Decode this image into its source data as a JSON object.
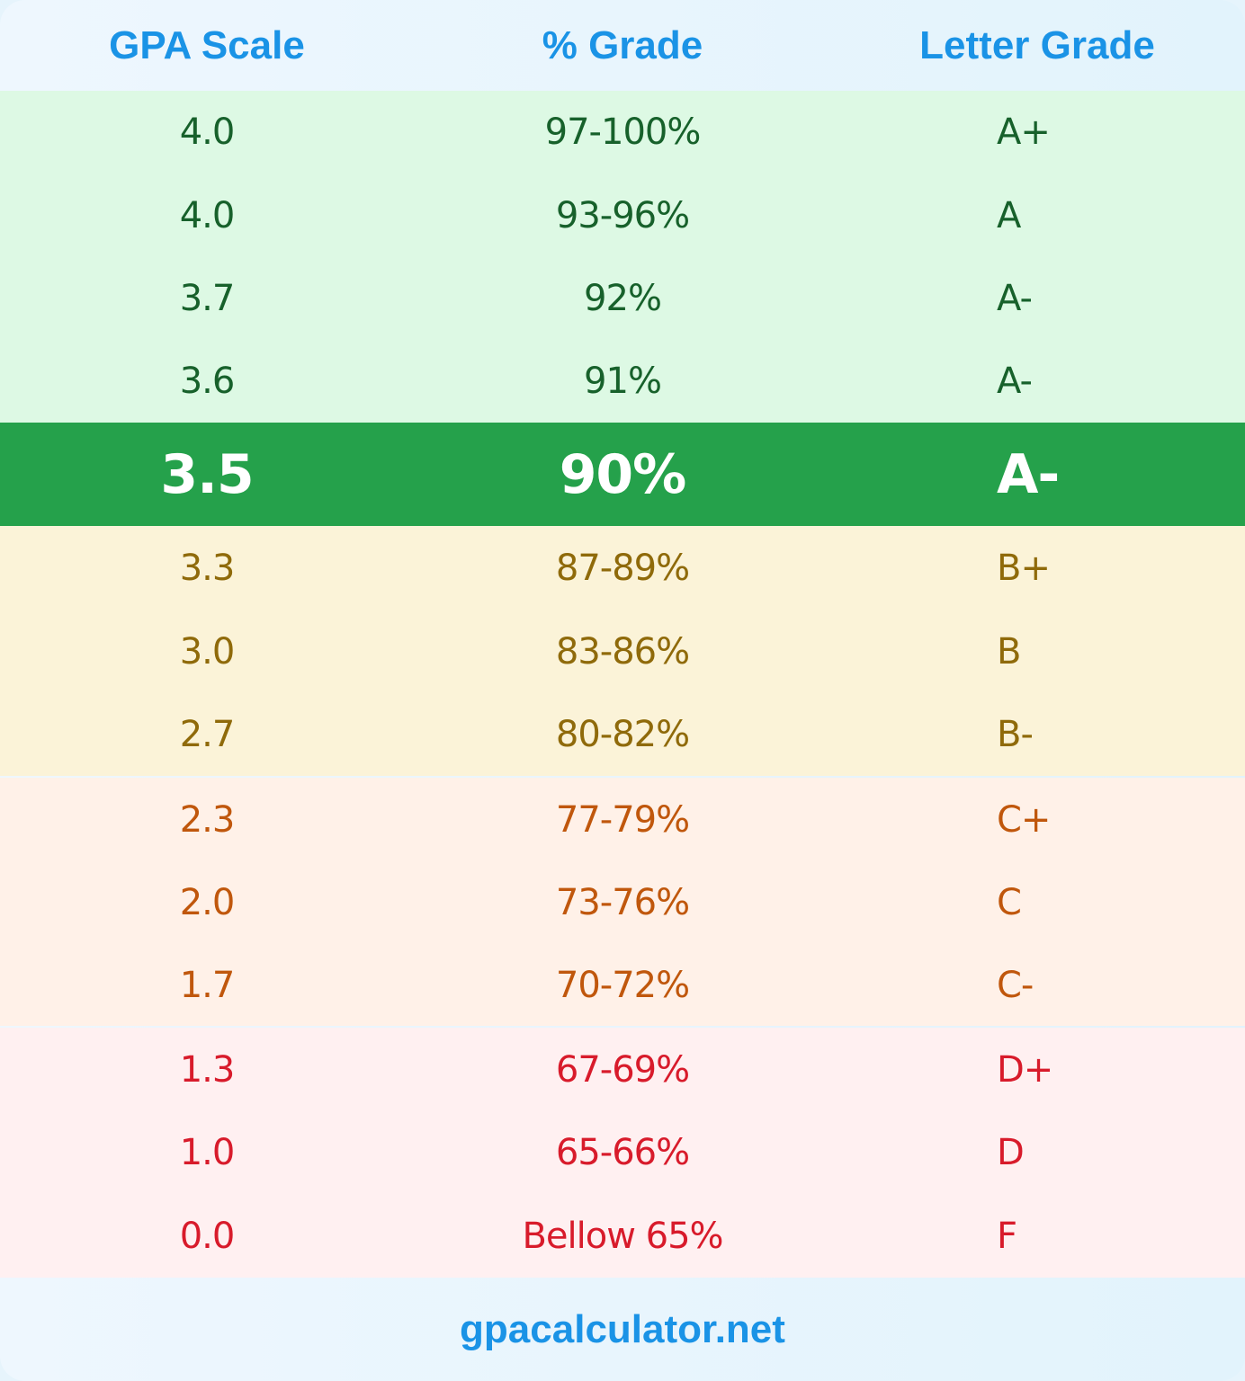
{
  "header": {
    "gpa": "GPA Scale",
    "percent": "% Grade",
    "letter": "Letter Grade"
  },
  "colors": {
    "accent": "#1a93e6",
    "green_bg": "#ddf9e4",
    "green_text": "#17612b",
    "highlight_bg": "#25a14b",
    "yellow_bg": "#fbf3d8",
    "yellow_text": "#8f6a0a",
    "orange_bg": "#fff1e8",
    "orange_text": "#c0570c",
    "red_bg": "#fff0f1",
    "red_text": "#d81b2b"
  },
  "rows": [
    {
      "gpa": "4.0",
      "percent": "97-100%",
      "letter": "A+",
      "group": "green"
    },
    {
      "gpa": "4.0",
      "percent": "93-96%",
      "letter": "A",
      "group": "green"
    },
    {
      "gpa": "3.7",
      "percent": "92%",
      "letter": "A-",
      "group": "green"
    },
    {
      "gpa": "3.6",
      "percent": "91%",
      "letter": "A-",
      "group": "green"
    },
    {
      "gpa": "3.5",
      "percent": "90%",
      "letter": "A-",
      "group": "highlight"
    },
    {
      "gpa": "3.3",
      "percent": "87-89%",
      "letter": "B+",
      "group": "yellow"
    },
    {
      "gpa": "3.0",
      "percent": "83-86%",
      "letter": "B",
      "group": "yellow"
    },
    {
      "gpa": "2.7",
      "percent": "80-82%",
      "letter": "B-",
      "group": "yellow"
    },
    {
      "gpa": "2.3",
      "percent": "77-79%",
      "letter": "C+",
      "group": "orange"
    },
    {
      "gpa": "2.0",
      "percent": "73-76%",
      "letter": "C",
      "group": "orange"
    },
    {
      "gpa": "1.7",
      "percent": "70-72%",
      "letter": "C-",
      "group": "orange"
    },
    {
      "gpa": "1.3",
      "percent": "67-69%",
      "letter": "D+",
      "group": "red"
    },
    {
      "gpa": "1.0",
      "percent": "65-66%",
      "letter": "D",
      "group": "red"
    },
    {
      "gpa": "0.0",
      "percent": "Bellow 65%",
      "letter": "F",
      "group": "red"
    }
  ],
  "footer": {
    "site": "gpacalculator.net"
  }
}
